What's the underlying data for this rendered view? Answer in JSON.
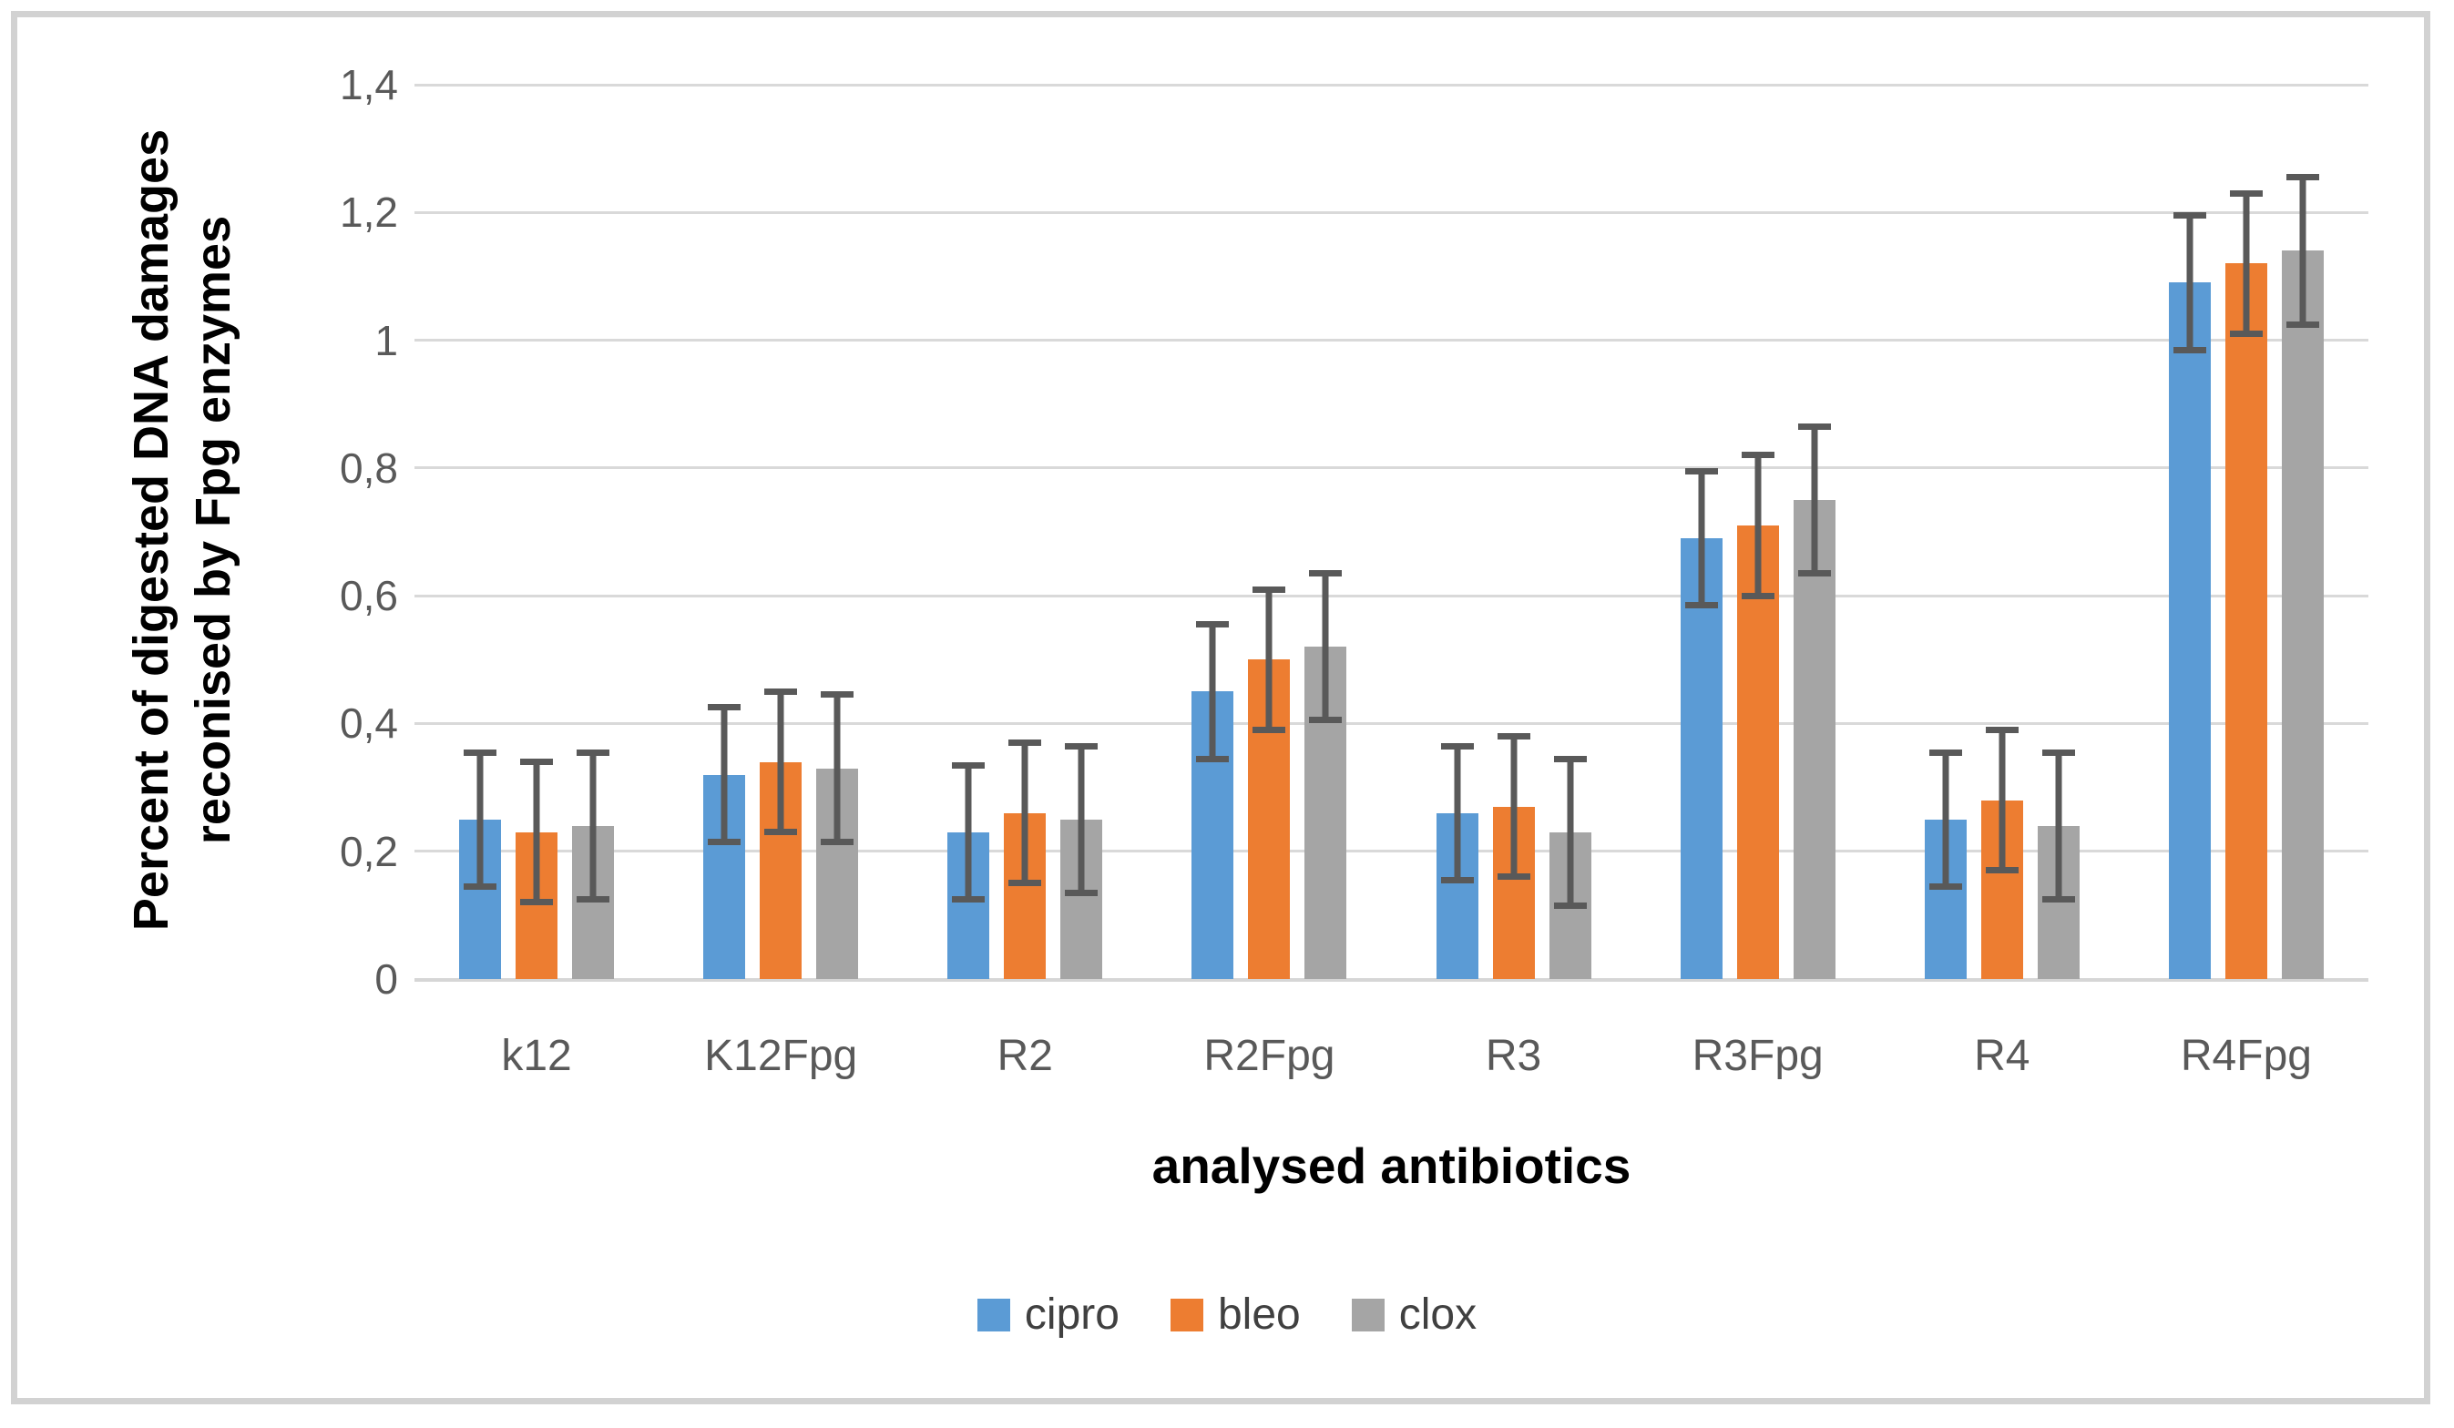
{
  "frame": {
    "border_color": "#d2d2d2",
    "background": "#ffffff"
  },
  "chart_data": {
    "type": "bar",
    "title": "",
    "categories": [
      "k12",
      "K12Fpg",
      "R2",
      "R2Fpg",
      "R3",
      "R3Fpg",
      "R4",
      "R4Fpg"
    ],
    "series": [
      {
        "name": "cipro",
        "color": "#5B9BD5",
        "values": [
          0.25,
          0.32,
          0.23,
          0.45,
          0.26,
          0.69,
          0.25,
          1.09
        ],
        "error": 0.105
      },
      {
        "name": "bleo",
        "color": "#ED7D31",
        "values": [
          0.23,
          0.34,
          0.26,
          0.5,
          0.27,
          0.71,
          0.28,
          1.12
        ],
        "error": 0.11
      },
      {
        "name": "clox",
        "color": "#A5A5A5",
        "values": [
          0.24,
          0.33,
          0.25,
          0.52,
          0.23,
          0.75,
          0.24,
          1.14
        ],
        "error": 0.115
      }
    ],
    "error_bars": true,
    "error_bar_color": "#595959",
    "xlabel": "analysed antibiotics",
    "ylabel_line1": "Percent of digested DNA damages",
    "ylabel_line2": "reconised by Fpg enzymes",
    "ylim": [
      0,
      1.4
    ],
    "ytick_step": 0.2,
    "ytick_labels": [
      "0",
      "0,2",
      "0,4",
      "0,6",
      "0,8",
      "1",
      "1,2",
      "1,4"
    ],
    "grid": true,
    "gridline_color": "#d9d9d9",
    "axis_text_color": "#595959",
    "legend_position": "bottom"
  }
}
